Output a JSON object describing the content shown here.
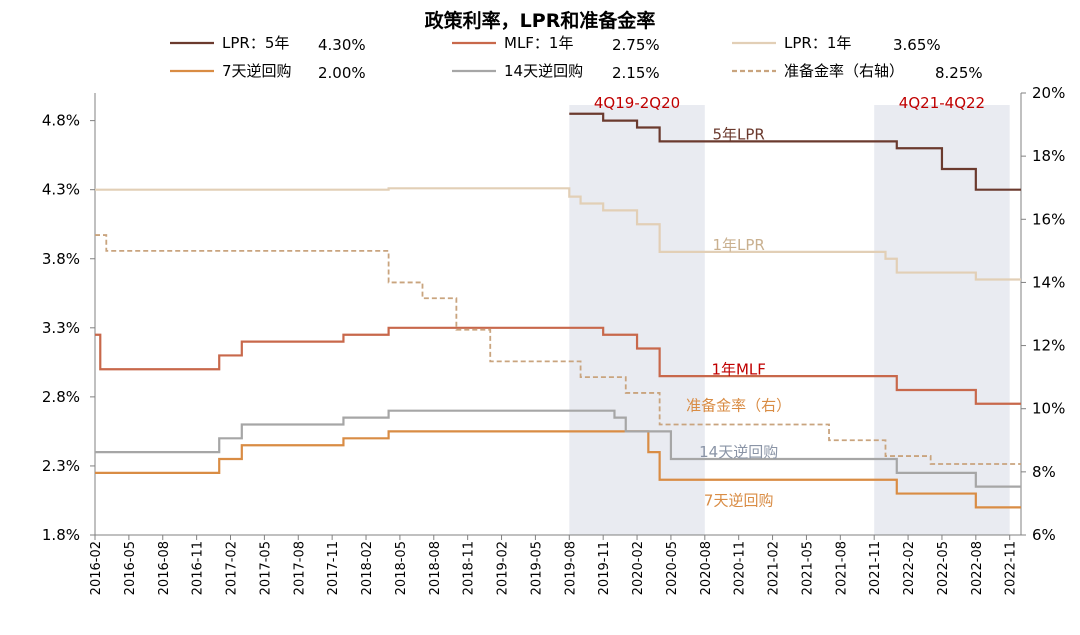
{
  "chart_data": {
    "type": "line",
    "title": "政策利率，LPR和准备金率",
    "y_left": {
      "ylim": [
        1.8,
        5.0
      ],
      "ticks": [
        "1.8%",
        "2.3%",
        "2.8%",
        "3.3%",
        "3.8%",
        "4.3%",
        "4.8%"
      ],
      "tick_values": [
        1.8,
        2.3,
        2.8,
        3.3,
        3.8,
        4.3,
        4.8
      ]
    },
    "y_right": {
      "ylim": [
        6,
        20
      ],
      "ticks": [
        "6%",
        "8%",
        "10%",
        "12%",
        "14%",
        "16%",
        "18%",
        "20%"
      ],
      "tick_values": [
        6,
        8,
        10,
        12,
        14,
        16,
        18,
        20
      ]
    },
    "x_range": [
      "2016-02",
      "2022-12"
    ],
    "x_ticks": [
      "2016-02",
      "2016-05",
      "2016-08",
      "2016-11",
      "2017-02",
      "2017-05",
      "2017-08",
      "2017-11",
      "2018-02",
      "2018-05",
      "2018-08",
      "2018-11",
      "2019-02",
      "2019-05",
      "2019-08",
      "2019-11",
      "2020-02",
      "2020-05",
      "2020-08",
      "2020-11",
      "2021-02",
      "2021-05",
      "2021-08",
      "2021-11",
      "2022-02",
      "2022-05",
      "2022-08",
      "2022-11"
    ],
    "grid": false,
    "legend_position": "top",
    "shaded_periods": [
      {
        "label": "4Q19-2Q20",
        "start": "2019-08",
        "end": "2020-08"
      },
      {
        "label": "4Q21-4Q22",
        "start": "2021-11",
        "end": "2022-11"
      }
    ],
    "series": [
      {
        "name": "LPR：5年",
        "legend_value": "4.30%",
        "label": "5年LPR",
        "axis": "left",
        "color": "#6b3a2e",
        "dash": false,
        "points": [
          [
            "2019-08",
            4.85
          ],
          [
            "2019-11",
            4.8
          ],
          [
            "2020-02",
            4.75
          ],
          [
            "2020-04",
            4.65
          ],
          [
            "2022-01",
            4.6
          ],
          [
            "2022-05",
            4.45
          ],
          [
            "2022-08",
            4.3
          ],
          [
            "2022-12",
            4.3
          ]
        ]
      },
      {
        "name": "MLF：1年",
        "legend_value": "2.75%",
        "label": "1年MLF",
        "axis": "left",
        "color": "#c8684b",
        "dash": false,
        "points": [
          [
            "2016-02",
            3.25
          ],
          [
            "2016-02-15",
            3.0
          ],
          [
            "2017-01",
            3.1
          ],
          [
            "2017-03",
            3.2
          ],
          [
            "2017-12",
            3.25
          ],
          [
            "2018-04",
            3.3
          ],
          [
            "2019-11",
            3.25
          ],
          [
            "2020-02",
            3.15
          ],
          [
            "2020-04",
            2.95
          ],
          [
            "2022-01",
            2.85
          ],
          [
            "2022-08",
            2.75
          ],
          [
            "2022-12",
            2.75
          ]
        ]
      },
      {
        "name": "LPR：1年",
        "legend_value": "3.65%",
        "label": "1年LPR",
        "axis": "left",
        "color": "#e2cfb6",
        "dash": false,
        "points": [
          [
            "2016-02",
            4.3
          ],
          [
            "2018-04",
            4.31
          ],
          [
            "2019-08",
            4.25
          ],
          [
            "2019-09",
            4.2
          ],
          [
            "2019-11",
            4.15
          ],
          [
            "2020-02",
            4.05
          ],
          [
            "2020-04",
            3.85
          ],
          [
            "2021-12",
            3.8
          ],
          [
            "2022-01",
            3.7
          ],
          [
            "2022-08",
            3.65
          ],
          [
            "2022-12",
            3.65
          ]
        ]
      },
      {
        "name": "7天逆回购",
        "legend_value": "2.00%",
        "label": "7天逆回购",
        "axis": "left",
        "color": "#d98c44",
        "dash": false,
        "points": [
          [
            "2016-02",
            2.25
          ],
          [
            "2017-01",
            2.35
          ],
          [
            "2017-03",
            2.45
          ],
          [
            "2017-12",
            2.5
          ],
          [
            "2018-04",
            2.55
          ],
          [
            "2020-03",
            2.4
          ],
          [
            "2020-04",
            2.2
          ],
          [
            "2022-01",
            2.1
          ],
          [
            "2022-08",
            2.0
          ],
          [
            "2022-12",
            2.0
          ]
        ]
      },
      {
        "name": "14天逆回购",
        "legend_value": "2.15%",
        "label": "14天逆回购",
        "axis": "left",
        "color": "#a6a6a6",
        "dash": false,
        "points": [
          [
            "2016-02",
            2.4
          ],
          [
            "2017-01",
            2.5
          ],
          [
            "2017-03",
            2.6
          ],
          [
            "2017-12",
            2.65
          ],
          [
            "2018-04",
            2.7
          ],
          [
            "2019-12",
            2.65
          ],
          [
            "2020-01",
            2.55
          ],
          [
            "2020-05",
            2.35
          ],
          [
            "2022-01",
            2.25
          ],
          [
            "2022-08",
            2.15
          ],
          [
            "2022-12",
            2.15
          ]
        ]
      },
      {
        "name": "准备金率（右轴）",
        "legend_value": "8.25%",
        "label": "准备金率（右）",
        "axis": "right",
        "color": "#c9a47e",
        "dash": true,
        "points": [
          [
            "2016-02",
            15.5
          ],
          [
            "2016-03",
            15.0
          ],
          [
            "2018-04",
            14.0
          ],
          [
            "2018-07",
            13.5
          ],
          [
            "2018-10",
            12.5
          ],
          [
            "2019-01",
            11.5
          ],
          [
            "2019-09",
            11.0
          ],
          [
            "2020-01",
            10.5
          ],
          [
            "2020-04",
            9.5
          ],
          [
            "2021-07",
            9.0
          ],
          [
            "2021-12",
            8.5
          ],
          [
            "2022-04",
            8.25
          ],
          [
            "2022-12",
            8.25
          ]
        ]
      }
    ]
  }
}
